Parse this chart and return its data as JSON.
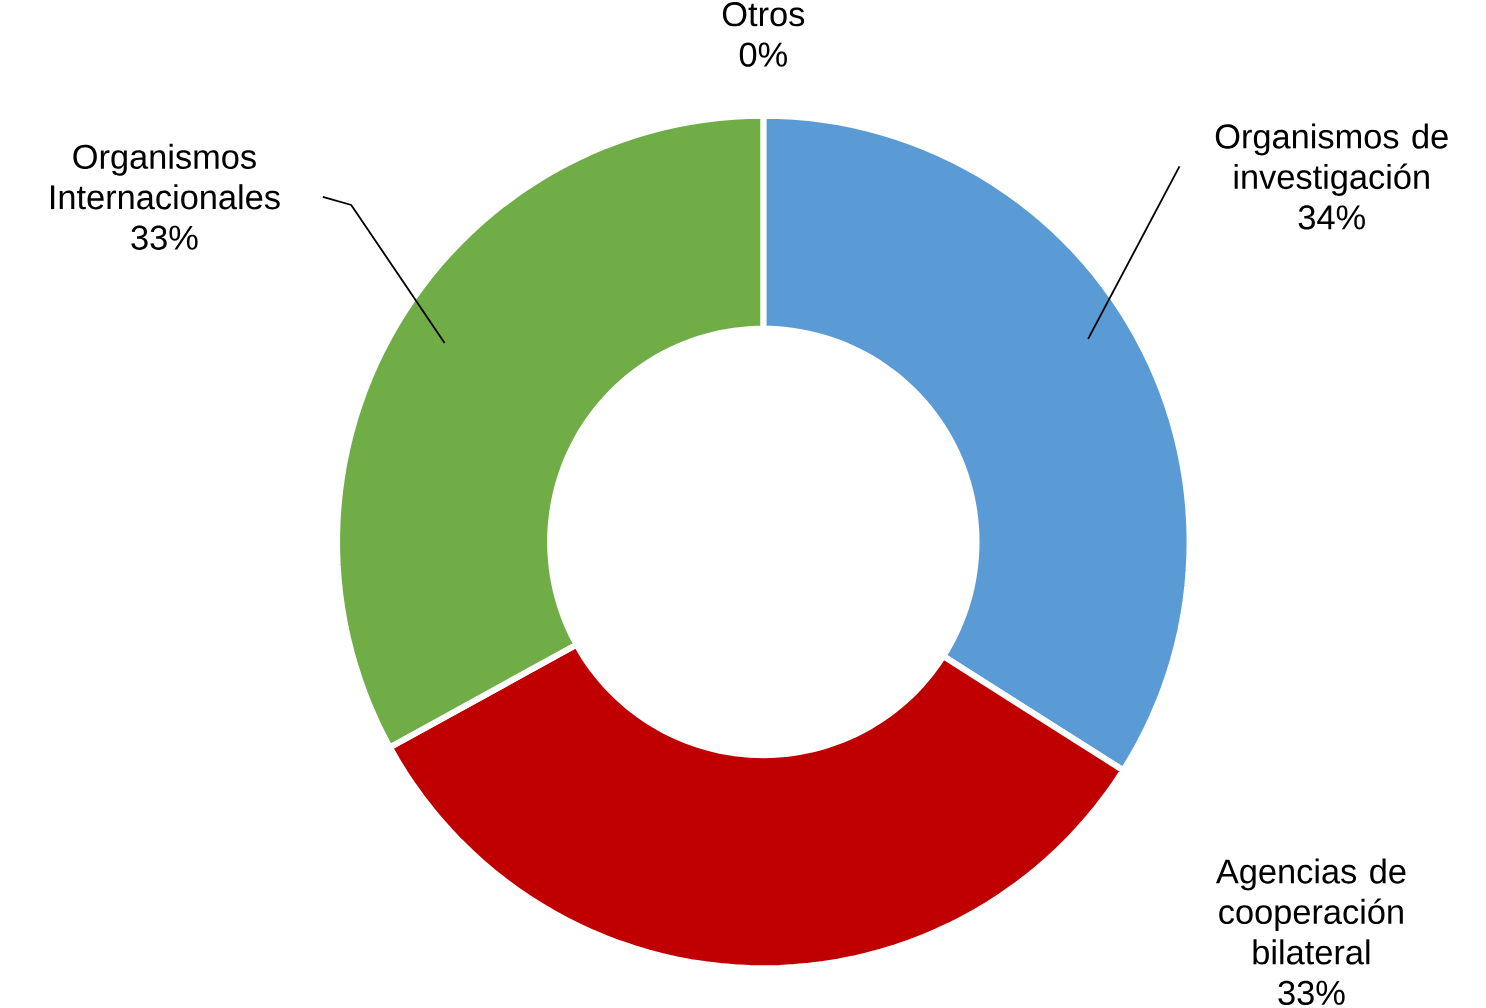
{
  "chart_data": {
    "type": "donut",
    "categories": [
      "Organismos de investigación",
      "Agencias de cooperación bilateral",
      "Organismos Internacionales",
      "Otros"
    ],
    "values": [
      34,
      33,
      33,
      0
    ],
    "value_labels": [
      "34%",
      "33%",
      "33%",
      "0%"
    ],
    "colors": [
      "#5b9bd5",
      "#c00000",
      "#70ad47",
      "#a5a5a5"
    ]
  }
}
